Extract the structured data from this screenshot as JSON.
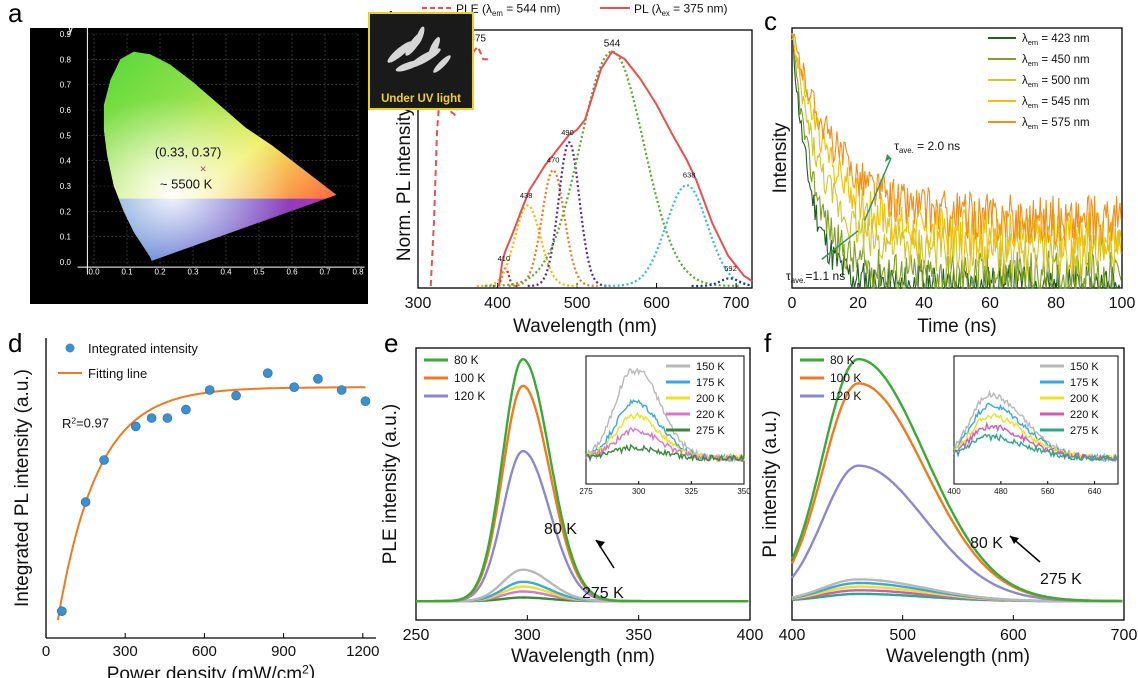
{
  "chart_data": [
    {
      "panel": "a",
      "type": "scatter",
      "xlabel": "x",
      "ylabel": "y",
      "xlim": [
        -0.05,
        0.8
      ],
      "ylim": [
        -0.05,
        0.9
      ],
      "xticks": [
        "0.0",
        "0.1",
        "0.2",
        "0.3",
        "0.4",
        "0.5",
        "0.6",
        "0.7",
        "0.8"
      ],
      "yticks": [
        "0.0",
        "0.1",
        "0.2",
        "0.3",
        "0.4",
        "0.5",
        "0.6",
        "0.7",
        "0.8",
        "0.9"
      ],
      "point": {
        "x": 0.33,
        "y": 0.37
      },
      "point_label": "(0.33, 0.37)",
      "cct_label": "~ 5500 K",
      "inset_label": "Under UV light"
    },
    {
      "panel": "b",
      "type": "line",
      "xlabel": "Wavelength (nm)",
      "ylabel": "Norm. PL intensity (a.u.)",
      "xlim": [
        300,
        720
      ],
      "xticks": [
        "300",
        "400",
        "500",
        "600",
        "700"
      ],
      "legend": [
        {
          "prefix": "PLE (λ",
          "sub": "em",
          "suffix": " = 544 nm)",
          "color": "#e8504f",
          "dashed": true
        },
        {
          "prefix": "PL (λ",
          "sub": "ex",
          "suffix": " = 375 nm)",
          "color": "#e8504f",
          "dashed": false
        }
      ],
      "ple": {
        "x": [
          316,
          320,
          324,
          328,
          331,
          334,
          338,
          342,
          346,
          350,
          354,
          358,
          362,
          366,
          370,
          375,
          378,
          382,
          388
        ],
        "y": [
          0.0,
          0.25,
          0.62,
          0.78,
          0.82,
          0.79,
          0.72,
          0.69,
          0.68,
          0.71,
          0.76,
          0.82,
          0.86,
          0.9,
          0.93,
          0.95,
          0.93,
          0.9,
          0.9
        ]
      },
      "pl": {
        "x": [
          402,
          406,
          410,
          418,
          430,
          440,
          450,
          460,
          470,
          480,
          490,
          500,
          510,
          520,
          530,
          544,
          560,
          580,
          600,
          620,
          638,
          650,
          670,
          690,
          700,
          710,
          720
        ],
        "y": [
          0.0,
          0.1,
          0.14,
          0.2,
          0.3,
          0.38,
          0.43,
          0.48,
          0.52,
          0.56,
          0.6,
          0.62,
          0.66,
          0.76,
          0.86,
          0.93,
          0.9,
          0.82,
          0.72,
          0.6,
          0.5,
          0.42,
          0.25,
          0.12,
          0.08,
          0.04,
          0.02
        ]
      },
      "gaussians": [
        {
          "center": 410,
          "width": 4,
          "amp": 0.07,
          "color": "#d02020"
        },
        {
          "center": 438,
          "width": 16,
          "amp": 0.32,
          "color": "#f5b800"
        },
        {
          "center": 470,
          "width": 14,
          "amp": 0.46,
          "color": "#f07818"
        },
        {
          "center": 490,
          "width": 13,
          "amp": 0.57,
          "color": "#6020a0"
        },
        {
          "center": 544,
          "width": 40,
          "amp": 0.93,
          "color": "#5aa830"
        },
        {
          "center": 638,
          "width": 26,
          "amp": 0.4,
          "color": "#38b8e0"
        },
        {
          "center": 692,
          "width": 12,
          "amp": 0.03,
          "color": "#1a3a8a"
        }
      ],
      "peak_labels": [
        {
          "text": "331",
          "x": 331,
          "y": 0.83,
          "size": 10
        },
        {
          "text": "375",
          "x": 375,
          "y": 0.97,
          "size": 10
        },
        {
          "text": "544",
          "x": 544,
          "y": 0.95,
          "size": 10
        },
        {
          "text": "490",
          "x": 488,
          "y": 0.6,
          "size": 7.5
        },
        {
          "text": "470",
          "x": 470,
          "y": 0.49,
          "size": 7.5
        },
        {
          "text": "438",
          "x": 436,
          "y": 0.35,
          "size": 7.5
        },
        {
          "text": "638",
          "x": 641,
          "y": 0.43,
          "size": 7.5
        },
        {
          "text": "410",
          "x": 408,
          "y": 0.1,
          "size": 7.5
        },
        {
          "text": "692",
          "x": 693,
          "y": 0.06,
          "size": 7.5
        }
      ]
    },
    {
      "panel": "c",
      "type": "line",
      "xlabel": "Time (ns)",
      "ylabel": "Intensity",
      "xlim": [
        0,
        100
      ],
      "xticks": [
        "0",
        "20",
        "40",
        "60",
        "80",
        "100"
      ],
      "series": [
        {
          "name_sub": "em",
          "value": "423 nm",
          "color": "#1f5e1f",
          "tau": 6,
          "floor": 0.0
        },
        {
          "name_sub": "em",
          "value": "450 nm",
          "color": "#7fa020",
          "tau": 7,
          "floor": 0.05
        },
        {
          "name_sub": "em",
          "value": "500 nm",
          "color": "#d4c42a",
          "tau": 9,
          "floor": 0.14
        },
        {
          "name_sub": "em",
          "value": "545 nm",
          "color": "#f2c000",
          "tau": 12,
          "floor": 0.2
        },
        {
          "name_sub": "em",
          "value": "575 nm",
          "color": "#f09018",
          "tau": 14,
          "floor": 0.26
        }
      ],
      "annotations": [
        {
          "main": "τ",
          "sub": "ave.",
          "rest": " = 2.0 ns"
        },
        {
          "main": "τ",
          "sub": "ave.",
          "rest": "=1.1 ns"
        }
      ]
    },
    {
      "panel": "d",
      "type": "scatter",
      "xlabel": "Power density (mW/cm²)",
      "ylabel": "Integrated PL intensity (a.u.)",
      "xlim": [
        0,
        1250
      ],
      "xticks": [
        "0",
        "300",
        "600",
        "900",
        "1200"
      ],
      "ylim": [
        0,
        1.0
      ],
      "series": [
        {
          "name": "Integrated intensity",
          "x": [
            60,
            150,
            220,
            340,
            400,
            460,
            530,
            620,
            720,
            840,
            940,
            1030,
            1120,
            1210
          ],
          "y": [
            0.06,
            0.45,
            0.6,
            0.72,
            0.75,
            0.75,
            0.78,
            0.85,
            0.83,
            0.91,
            0.86,
            0.89,
            0.85,
            0.81
          ]
        },
        {
          "name": "Fitting line",
          "type": "line",
          "model": "A*(1-exp(-x/k))",
          "A": 0.86,
          "k": 150,
          "x0": 45
        }
      ],
      "r2": "R²=0.97"
    },
    {
      "panel": "e",
      "type": "line",
      "xlabel": "Wavelength (nm)",
      "ylabel": "PLE intensity (a.u.)",
      "xlim": [
        250,
        400
      ],
      "xticks": [
        "250",
        "300",
        "350",
        "400"
      ],
      "series": [
        {
          "name": "80  K",
          "color": "#3aaa35",
          "amp": 1.0
        },
        {
          "name": "100 K",
          "color": "#f07a20",
          "amp": 0.89
        },
        {
          "name": "120 K",
          "color": "#8c88d0",
          "amp": 0.62
        }
      ],
      "low_series": [
        {
          "name": "150 K",
          "color": "#b8b8b8",
          "amp": 0.13
        },
        {
          "name": "175 K",
          "color": "#3aa8e0",
          "amp": 0.08
        },
        {
          "name": "200 K",
          "color": "#f0e020",
          "amp": 0.06
        },
        {
          "name": "220 K",
          "color": "#d878c8",
          "amp": 0.04
        },
        {
          "name": "275 K",
          "color": "#3a8a3a",
          "amp": 0.015
        }
      ],
      "inset": {
        "xlim": [
          275,
          350
        ],
        "xticks": [
          "275",
          "300",
          "325",
          "350"
        ]
      },
      "arrow_labels": {
        "high": "80 K",
        "low": "275 K"
      }
    },
    {
      "panel": "f",
      "type": "line",
      "xlabel": "Wavelength (nm)",
      "ylabel": "PL intensity (a.u.)",
      "xlim": [
        400,
        700
      ],
      "xticks": [
        "400",
        "500",
        "600",
        "700"
      ],
      "series": [
        {
          "name": "80 K",
          "color": "#3aaa35",
          "amp": 1.0
        },
        {
          "name": "100 K",
          "color": "#f07a20",
          "amp": 0.9
        },
        {
          "name": "120 K",
          "color": "#8c88d0",
          "amp": 0.56
        }
      ],
      "low_series": [
        {
          "name": "150 K",
          "color": "#b8b8b8",
          "amp": 0.09
        },
        {
          "name": "175 K",
          "color": "#3aa8e0",
          "amp": 0.075
        },
        {
          "name": "200 K",
          "color": "#f0e020",
          "amp": 0.06
        },
        {
          "name": "220 K",
          "color": "#d05ab8",
          "amp": 0.045
        },
        {
          "name": "275 K",
          "color": "#2aaa88",
          "amp": 0.03
        }
      ],
      "inset": {
        "xlim": [
          400,
          680
        ],
        "xticks": [
          "400",
          "480",
          "560",
          "640"
        ]
      },
      "arrow_labels": {
        "high": "80 K",
        "low": "275 K"
      }
    }
  ],
  "panel_letters": [
    "a",
    "b",
    "c",
    "d",
    "e",
    "f"
  ]
}
